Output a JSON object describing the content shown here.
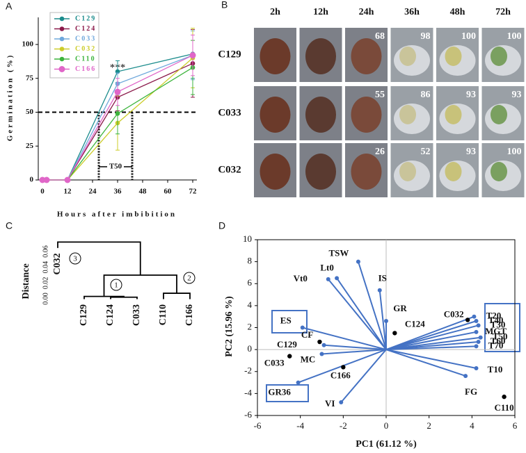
{
  "chart_data": [
    {
      "type": "line",
      "panel": "A",
      "xlabel": "Hours after imbibition",
      "ylabel": "Germination (%)",
      "x": [
        0,
        2,
        12,
        36,
        72
      ],
      "xlim": [
        -2,
        74
      ],
      "xticks": [
        0,
        12,
        24,
        36,
        48,
        60,
        72
      ],
      "ylim": [
        0,
        120
      ],
      "yticks": [
        0,
        25,
        50,
        75,
        100
      ],
      "series": [
        {
          "name": "C129",
          "color": "#1b8c8c",
          "values": [
            0,
            0,
            0,
            80,
            93
          ],
          "errors": [
            0,
            0,
            0,
            8,
            18
          ]
        },
        {
          "name": "C124",
          "color": "#8b1a4a",
          "values": [
            0,
            0,
            0,
            61,
            86
          ],
          "errors": [
            0,
            0,
            0,
            10,
            25
          ]
        },
        {
          "name": "C033",
          "color": "#6fa8dc",
          "values": [
            0,
            0,
            0,
            71,
            92
          ],
          "errors": [
            0,
            0,
            0,
            8,
            18
          ]
        },
        {
          "name": "C032",
          "color": "#cccc2a",
          "values": [
            0,
            0,
            0,
            42,
            90
          ],
          "errors": [
            0,
            0,
            0,
            20,
            22
          ]
        },
        {
          "name": "C110",
          "color": "#3cb43c",
          "values": [
            0,
            0,
            0,
            49,
            83
          ],
          "errors": [
            0,
            0,
            0,
            15,
            20
          ]
        },
        {
          "name": "C166",
          "color": "#e066c8",
          "values": [
            0,
            0,
            0,
            65,
            92
          ],
          "errors": [
            0,
            0,
            0,
            10,
            15
          ]
        }
      ],
      "annotation": "***",
      "hline": 50,
      "t50_label": "T50",
      "t50_range": [
        27,
        43
      ]
    },
    {
      "type": "image-grid",
      "panel": "B",
      "columns": [
        "2h",
        "12h",
        "24h",
        "36h",
        "48h",
        "72h"
      ],
      "rows": [
        {
          "label": "C129",
          "values": [
            null,
            null,
            68,
            98,
            100,
            100
          ]
        },
        {
          "label": "C033",
          "values": [
            null,
            null,
            55,
            86,
            93,
            93
          ]
        },
        {
          "label": "C032",
          "values": [
            null,
            null,
            26,
            52,
            93,
            100
          ]
        }
      ]
    },
    {
      "type": "dendrogram",
      "panel": "C",
      "ylabel": "Distance",
      "ylim": [
        0,
        0.075
      ],
      "yticks": [
        {
          "value": 0,
          "label": "0.00"
        },
        {
          "value": 0.02,
          "label": "0.02"
        },
        {
          "value": 0.04,
          "label": "0.04"
        },
        {
          "value": 0.06,
          "label": "0.06"
        }
      ],
      "leaves": [
        "C032",
        "C129",
        "C124",
        "C033",
        "C110",
        "C166"
      ],
      "leaf_heights": [
        0.065,
        0,
        0,
        0,
        0,
        0
      ],
      "merges": [
        {
          "children": [
            2,
            3
          ],
          "height": 0.002
        },
        {
          "children": [
            1,
            6
          ],
          "height": 0.003
        },
        {
          "children": [
            4,
            5
          ],
          "height": 0.007
        },
        {
          "children": [
            7,
            8
          ],
          "height": 0.03
        },
        {
          "children": [
            0,
            9
          ],
          "height": 0.072
        }
      ],
      "cluster_labels": [
        "1",
        "2",
        "3"
      ]
    },
    {
      "type": "biplot",
      "panel": "D",
      "xlabel": "PC1 (61.12 %)",
      "ylabel": "PC2 (15.96 %)",
      "xlim": [
        -6,
        6
      ],
      "xticks": [
        -6,
        -4,
        -2,
        0,
        2,
        4,
        6
      ],
      "ylim": [
        -6,
        10
      ],
      "yticks": [
        -6,
        -4,
        -2,
        0,
        2,
        4,
        6,
        8,
        10
      ],
      "loadings": {
        "color": "#4472c4",
        "names": [
          "TSW",
          "Lt0",
          "Vt0",
          "IS",
          "GR",
          "ES",
          "CF",
          "MC",
          "GR36",
          "VI",
          "FG",
          "T10",
          "T20",
          "T40",
          "T30",
          "MGT",
          "T50",
          "T60",
          "T70"
        ],
        "x": [
          -1.3,
          -2.3,
          -2.7,
          -0.3,
          0.0,
          -3.9,
          -2.9,
          -3.0,
          -4.1,
          -2.1,
          3.7,
          4.2,
          4.1,
          4.2,
          4.3,
          4.2,
          4.4,
          4.3,
          4.2
        ],
        "y": [
          8.0,
          6.5,
          6.4,
          5.4,
          2.6,
          2.0,
          0.4,
          -0.4,
          -3.0,
          -4.8,
          -2.4,
          -1.7,
          3.0,
          2.6,
          2.2,
          1.6,
          1.1,
          0.7,
          0.3
        ]
      },
      "scores": {
        "color": "#000000",
        "names": [
          "C032",
          "C124",
          "C129",
          "C033",
          "C166",
          "C110"
        ],
        "x": [
          3.8,
          0.4,
          -3.1,
          -4.5,
          -2.0,
          5.5
        ],
        "y": [
          2.7,
          1.5,
          0.7,
          -0.6,
          -1.6,
          -4.3
        ]
      }
    }
  ]
}
